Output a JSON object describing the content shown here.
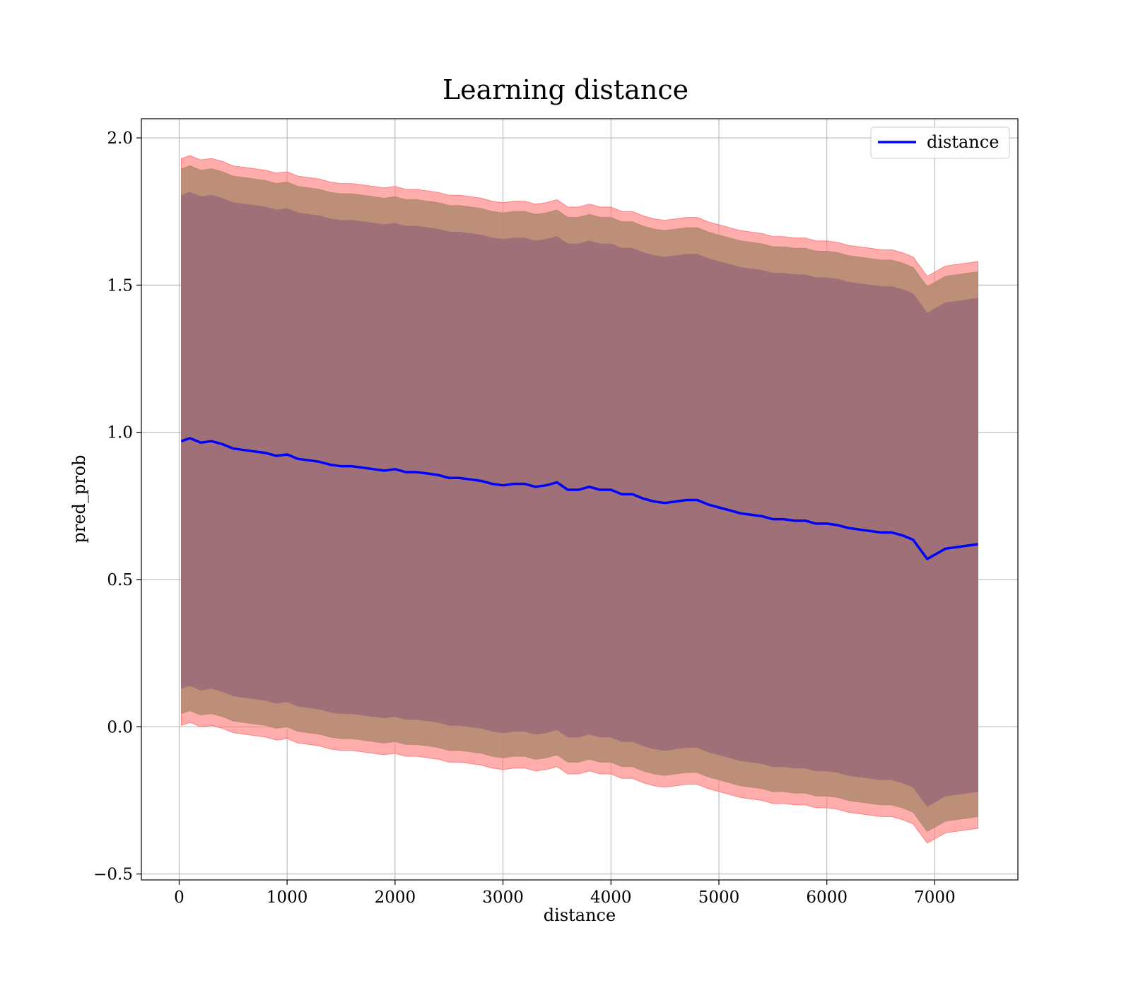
{
  "chart_data": {
    "type": "line",
    "title": "Learning distance",
    "xlabel": "distance",
    "ylabel": "pred_prob",
    "xlim": [
      -350,
      7770
    ],
    "ylim": [
      -0.52,
      2.065
    ],
    "grid": true,
    "legend": {
      "placement": "top-right",
      "entries": [
        "distance"
      ]
    },
    "x_ticks": [
      {
        "value": 0,
        "label": "0"
      },
      {
        "value": 1000,
        "label": "1000"
      },
      {
        "value": 2000,
        "label": "2000"
      },
      {
        "value": 3000,
        "label": "3000"
      },
      {
        "value": 4000,
        "label": "4000"
      },
      {
        "value": 5000,
        "label": "5000"
      },
      {
        "value": 6000,
        "label": "6000"
      },
      {
        "value": 7000,
        "label": "7000"
      }
    ],
    "y_ticks": [
      {
        "value": -0.5,
        "label": "−0.5"
      },
      {
        "value": 0.0,
        "label": "0.0"
      },
      {
        "value": 0.5,
        "label": "0.5"
      },
      {
        "value": 1.0,
        "label": "1.0"
      },
      {
        "value": 1.5,
        "label": "1.5"
      },
      {
        "value": 2.0,
        "label": "2.0"
      }
    ],
    "colors": {
      "line": "#0000ff",
      "outer_band": "#ff8080",
      "middle_band": "#b38a6e",
      "inner_band": "#a07078",
      "grid": "#b0b0b0"
    },
    "series": [
      {
        "name": "distance",
        "x": [
          20,
          100,
          200,
          300,
          400,
          500,
          600,
          700,
          800,
          900,
          1000,
          1100,
          1200,
          1300,
          1400,
          1500,
          1600,
          1700,
          1800,
          1900,
          2000,
          2100,
          2200,
          2300,
          2400,
          2500,
          2600,
          2700,
          2800,
          2900,
          3000,
          3100,
          3200,
          3300,
          3400,
          3500,
          3600,
          3700,
          3800,
          3900,
          4000,
          4100,
          4200,
          4300,
          4400,
          4500,
          4600,
          4700,
          4800,
          4900,
          5000,
          5100,
          5200,
          5300,
          5400,
          5500,
          5600,
          5700,
          5800,
          5900,
          6000,
          6100,
          6200,
          6300,
          6400,
          6500,
          6600,
          6700,
          6800,
          6930,
          7100,
          7400
        ],
        "y": [
          0.97,
          0.98,
          0.965,
          0.97,
          0.96,
          0.945,
          0.94,
          0.935,
          0.93,
          0.92,
          0.925,
          0.91,
          0.905,
          0.9,
          0.89,
          0.885,
          0.885,
          0.88,
          0.875,
          0.87,
          0.875,
          0.865,
          0.865,
          0.86,
          0.855,
          0.845,
          0.845,
          0.84,
          0.835,
          0.825,
          0.82,
          0.825,
          0.825,
          0.815,
          0.82,
          0.83,
          0.805,
          0.805,
          0.815,
          0.805,
          0.805,
          0.79,
          0.79,
          0.775,
          0.765,
          0.76,
          0.765,
          0.77,
          0.77,
          0.755,
          0.745,
          0.735,
          0.725,
          0.72,
          0.715,
          0.705,
          0.705,
          0.7,
          0.7,
          0.69,
          0.69,
          0.685,
          0.675,
          0.67,
          0.665,
          0.66,
          0.66,
          0.65,
          0.635,
          0.57,
          0.605,
          0.62
        ]
      }
    ],
    "bands": [
      {
        "name": "outer",
        "upper_offset": 0.96,
        "lower_offset": 0.965
      },
      {
        "name": "middle",
        "upper_offset": 0.925,
        "lower_offset": 0.925
      },
      {
        "name": "inner",
        "upper_offset": 0.835,
        "lower_offset": 0.84
      }
    ]
  }
}
